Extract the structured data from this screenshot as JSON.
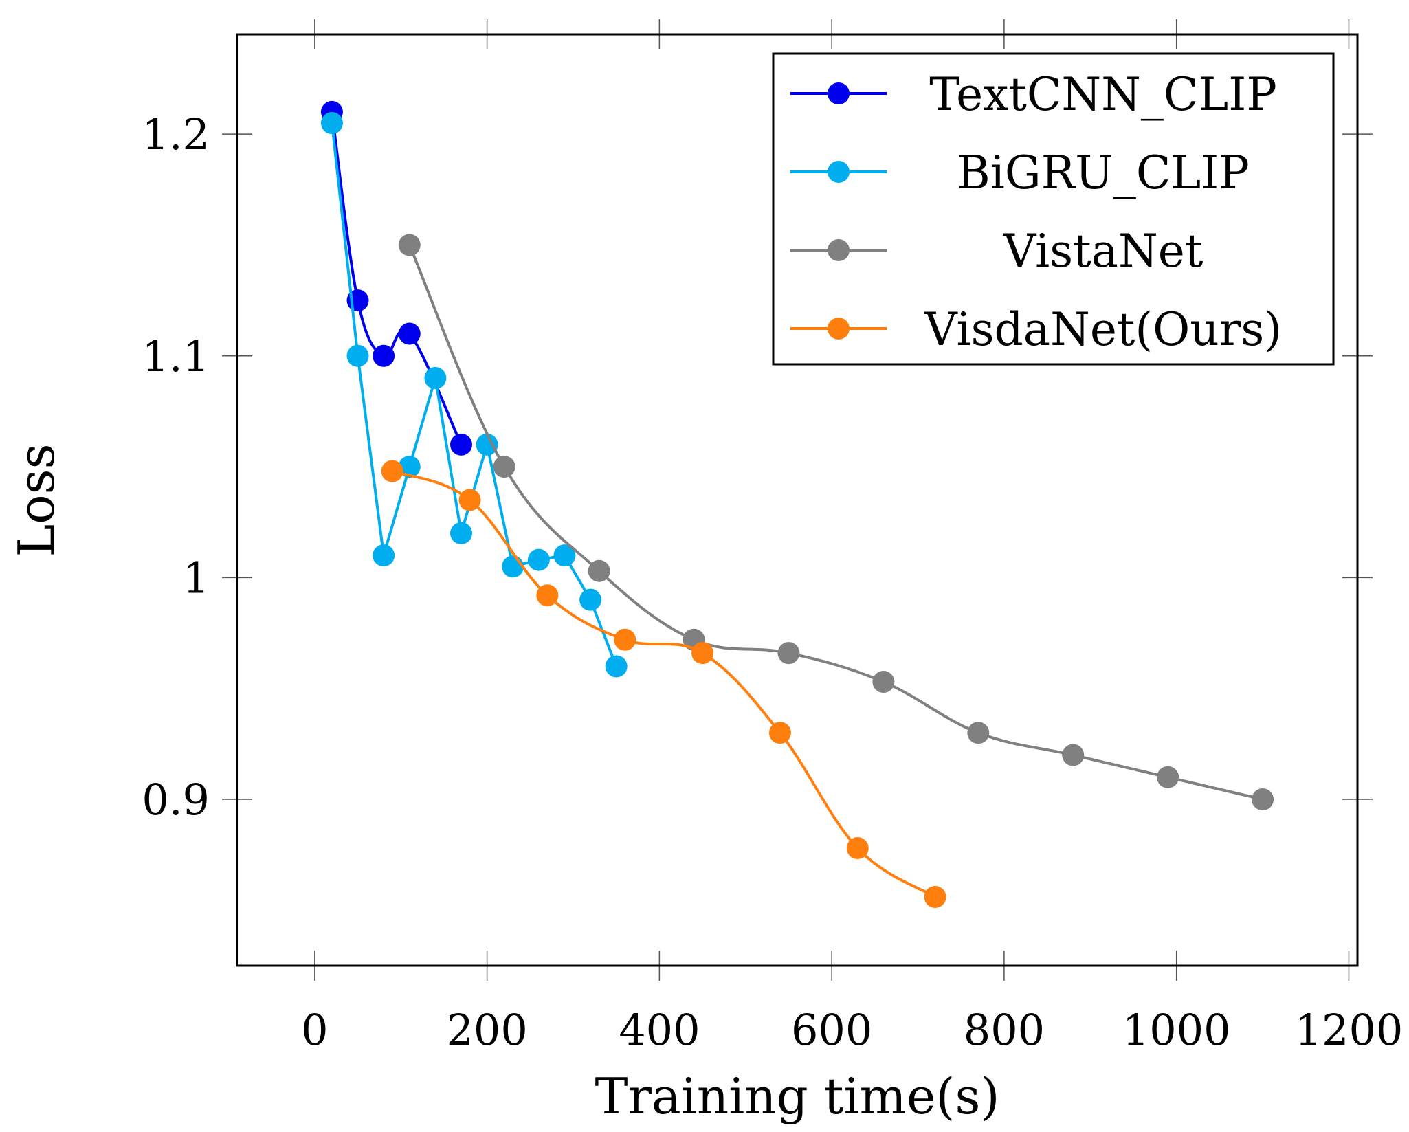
{
  "chart_data": {
    "type": "line",
    "title": "",
    "xlabel": "Training time(s)",
    "ylabel": "Loss",
    "xlim": [
      -90,
      1210
    ],
    "ylim": [
      0.825,
      1.245
    ],
    "xticks": [
      0,
      200,
      400,
      600,
      800,
      1000,
      1200
    ],
    "xtick_labels": [
      "0",
      "200",
      "400",
      "600",
      "800",
      "1000",
      "1200"
    ],
    "yticks": [
      0.9,
      1.0,
      1.1,
      1.2
    ],
    "ytick_labels": [
      "0.9",
      "1",
      "1.1",
      "1.2"
    ],
    "grid": false,
    "legend_position": "top-right",
    "series": [
      {
        "name": "TextCNN_CLIP",
        "color": "#0000ee",
        "x": [
          20,
          50,
          80,
          110,
          170
        ],
        "y": [
          1.21,
          1.125,
          1.1,
          1.11,
          1.06
        ]
      },
      {
        "name": "BiGRU_CLIP",
        "color": "#00aeef",
        "x": [
          20,
          50,
          80,
          110,
          140,
          170,
          200,
          230,
          260,
          290,
          320,
          350
        ],
        "y": [
          1.205,
          1.1,
          1.01,
          1.05,
          1.09,
          1.02,
          1.06,
          1.005,
          1.008,
          1.01,
          0.99,
          0.96
        ]
      },
      {
        "name": "VistaNet",
        "color": "#808080",
        "x": [
          110,
          220,
          330,
          440,
          550,
          660,
          770,
          880,
          990,
          1100
        ],
        "y": [
          1.15,
          1.05,
          1.003,
          0.972,
          0.966,
          0.953,
          0.93,
          0.92,
          0.91,
          0.9
        ]
      },
      {
        "name": "VisdaNet(Ours)",
        "color": "#ff7f0e",
        "x": [
          90,
          180,
          270,
          360,
          450,
          540,
          630,
          720
        ],
        "y": [
          1.048,
          1.035,
          0.992,
          0.972,
          0.966,
          0.93,
          0.878,
          0.856
        ]
      }
    ]
  }
}
